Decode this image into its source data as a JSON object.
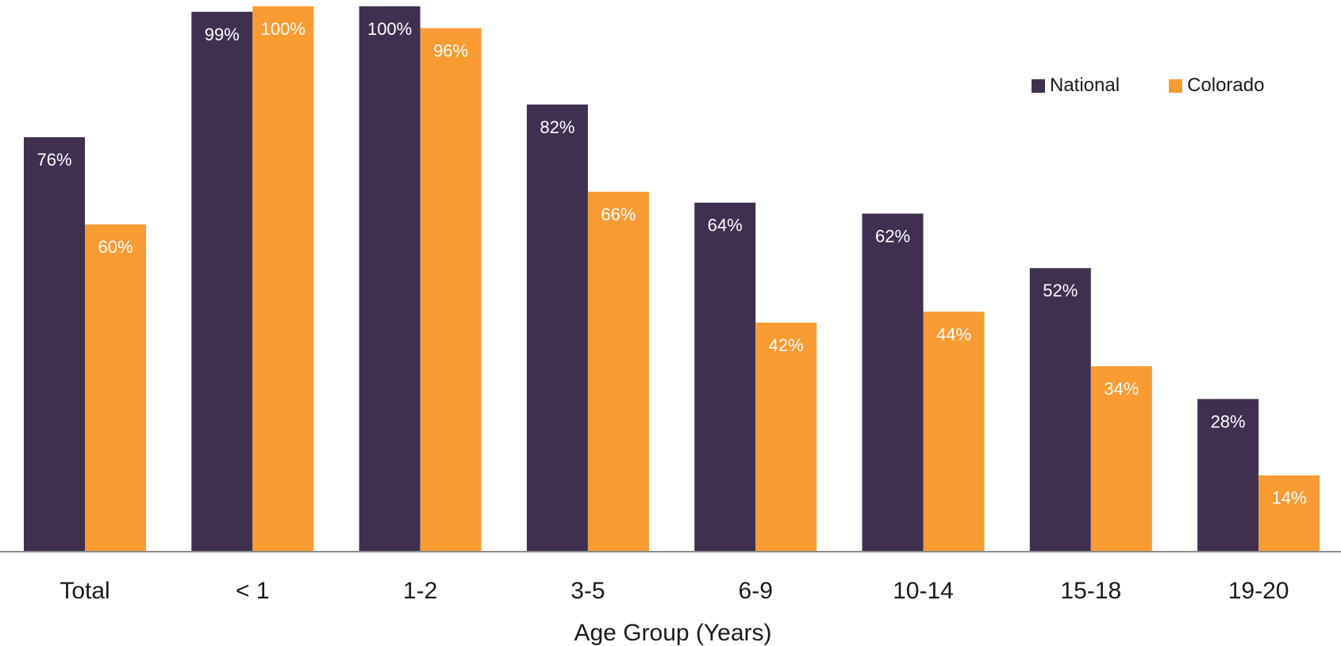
{
  "chart_data": {
    "type": "bar",
    "categories": [
      "Total",
      "< 1",
      "1-2",
      "3-5",
      "6-9",
      "10-14",
      "15-18",
      "19-20"
    ],
    "series": [
      {
        "name": "National",
        "color": "#3f3050",
        "values": [
          76,
          99,
          100,
          82,
          64,
          62,
          52,
          28
        ],
        "labels": [
          "76%",
          "99%",
          "100%",
          "82%",
          "64%",
          "62%",
          "52%",
          "28%"
        ]
      },
      {
        "name": "Colorado",
        "color": "#f99b33",
        "values": [
          60,
          100,
          96,
          66,
          42,
          44,
          34,
          14
        ],
        "labels": [
          "60%",
          "100%",
          "96%",
          "66%",
          "42%",
          "44%",
          "34%",
          "14%"
        ]
      }
    ],
    "xlabel": "Age Group (Years)",
    "ylabel": "",
    "ylim": [
      0,
      100
    ],
    "legend_position": "top-right",
    "grid": false
  }
}
